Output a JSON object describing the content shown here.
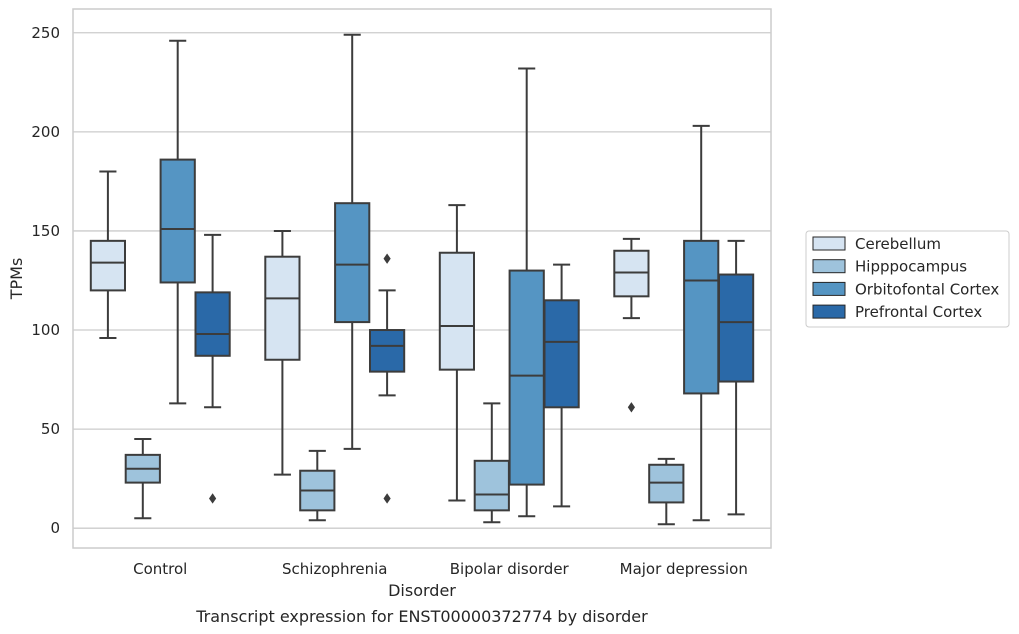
{
  "chart_data": {
    "type": "box",
    "caption": "Transcript expression for ENST00000372774 by disorder",
    "xlabel": "Disorder",
    "ylabel": "TPMs",
    "ylim": [
      -10,
      262
    ],
    "yticks": [
      0,
      50,
      100,
      150,
      200,
      250
    ],
    "grid": "horizontal",
    "legend_position": "right",
    "categories": [
      "Control",
      "Schizophrenia",
      "Bipolar disorder",
      "Major depression"
    ],
    "series": [
      {
        "name": "Cerebellum",
        "color": "#d6e4f2",
        "boxes": [
          {
            "whislo": 96,
            "q1": 120,
            "med": 134,
            "q3": 145,
            "whishi": 180,
            "fliers": []
          },
          {
            "whislo": 27,
            "q1": 85,
            "med": 116,
            "q3": 137,
            "whishi": 150,
            "fliers": []
          },
          {
            "whislo": 14,
            "q1": 80,
            "med": 102,
            "q3": 139,
            "whishi": 163,
            "fliers": []
          },
          {
            "whislo": 106,
            "q1": 117,
            "med": 129,
            "q3": 140,
            "whishi": 146,
            "fliers": [
              61
            ]
          }
        ]
      },
      {
        "name": "Hipppocampus",
        "color": "#9ec3dc",
        "boxes": [
          {
            "whislo": 5,
            "q1": 23,
            "med": 30,
            "q3": 37,
            "whishi": 45,
            "fliers": []
          },
          {
            "whislo": 4,
            "q1": 9,
            "med": 19,
            "q3": 29,
            "whishi": 39,
            "fliers": []
          },
          {
            "whislo": 3,
            "q1": 9,
            "med": 17,
            "q3": 34,
            "whishi": 63,
            "fliers": []
          },
          {
            "whislo": 2,
            "q1": 13,
            "med": 23,
            "q3": 32,
            "whishi": 35,
            "fliers": []
          }
        ]
      },
      {
        "name": "Orbitofontal Cortex",
        "color": "#5595c3",
        "boxes": [
          {
            "whislo": 63,
            "q1": 124,
            "med": 151,
            "q3": 186,
            "whishi": 246,
            "fliers": []
          },
          {
            "whislo": 40,
            "q1": 104,
            "med": 133,
            "q3": 164,
            "whishi": 249,
            "fliers": []
          },
          {
            "whislo": 6,
            "q1": 22,
            "med": 77,
            "q3": 130,
            "whishi": 232,
            "fliers": []
          },
          {
            "whislo": 4,
            "q1": 68,
            "med": 125,
            "q3": 145,
            "whishi": 203,
            "fliers": []
          }
        ]
      },
      {
        "name": "Prefrontal Cortex",
        "color": "#2a69a8",
        "boxes": [
          {
            "whislo": 61,
            "q1": 87,
            "med": 98,
            "q3": 119,
            "whishi": 148,
            "fliers": [
              15
            ]
          },
          {
            "whislo": 67,
            "q1": 79,
            "med": 92,
            "q3": 100,
            "whishi": 120,
            "fliers": [
              136,
              15
            ]
          },
          {
            "whislo": 11,
            "q1": 61,
            "med": 94,
            "q3": 115,
            "whishi": 133,
            "fliers": []
          },
          {
            "whislo": 7,
            "q1": 74,
            "med": 104,
            "q3": 128,
            "whishi": 145,
            "fliers": []
          }
        ]
      }
    ],
    "colors": {
      "box_edge": "#3c3c3c",
      "grid": "#cccccc",
      "frame": "#cccccc"
    }
  }
}
